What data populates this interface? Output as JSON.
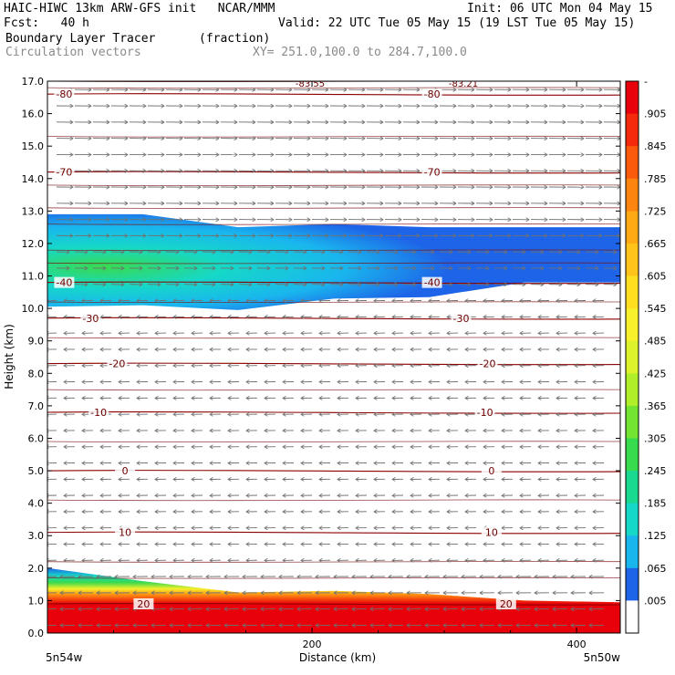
{
  "header": {
    "model_line": "HAIC-HIWC 13km ARW-GFS init   NCAR/MMM",
    "init_line": "Init: 06 UTC Mon 04 May 15",
    "fcst_line": "Fcst:   40 h",
    "valid_line": "Valid: 22 UTC Tue 05 May 15 (19 LST Tue 05 May 15)",
    "field_name": "Boundary Layer Tracer",
    "field_units": "(fraction)",
    "vector_name": "Circulation vectors",
    "xy_range": "XY= 251.0,100.0 to 284.7,100.0"
  },
  "chart_data": {
    "type": "heatmap",
    "xlabel": "Distance (km)",
    "ylabel": "Height (km)",
    "xlim": [
      0,
      433
    ],
    "ylim": [
      0,
      17
    ],
    "x_ticks": [
      {
        "value": 200,
        "label": "200"
      },
      {
        "value": 400,
        "label": "400"
      }
    ],
    "x_end_labels": {
      "left": "5n54w",
      "right": "5n50w"
    },
    "y_ticks": [
      {
        "value": 0,
        "label": "0.0"
      },
      {
        "value": 1,
        "label": "1.0"
      },
      {
        "value": 2,
        "label": "2.0"
      },
      {
        "value": 3,
        "label": "3.0"
      },
      {
        "value": 4,
        "label": "4.0"
      },
      {
        "value": 5,
        "label": "5.0"
      },
      {
        "value": 6,
        "label": "6.0"
      },
      {
        "value": 7,
        "label": "7.0"
      },
      {
        "value": 8,
        "label": "8.0"
      },
      {
        "value": 9,
        "label": "9.0"
      },
      {
        "value": 10,
        "label": "10.0"
      },
      {
        "value": 11,
        "label": "11.0"
      },
      {
        "value": 12,
        "label": "12.0"
      },
      {
        "value": 13,
        "label": "13.0"
      },
      {
        "value": 14,
        "label": "14.0"
      },
      {
        "value": 15,
        "label": "15.0"
      },
      {
        "value": 16,
        "label": "16.0"
      },
      {
        "value": 17,
        "label": "17.0"
      }
    ],
    "colorbar": {
      "labels": [
        "-",
        ".905",
        ".845",
        ".785",
        ".725",
        ".665",
        ".605",
        ".545",
        ".485",
        ".425",
        ".365",
        ".305",
        ".245",
        ".185",
        ".125",
        ".065",
        ".005"
      ],
      "colors": [
        "#e8000b",
        "#f42a0c",
        "#fb5a0c",
        "#fe8410",
        "#ffa914",
        "#ffc319",
        "#ffde1f",
        "#f7f02a",
        "#ddf22a",
        "#b0ee2a",
        "#74e432",
        "#38da4e",
        "#19d88f",
        "#16d8c8",
        "#19b6ee",
        "#1e64e8",
        "#ffffff"
      ]
    },
    "isotherm_contours": [
      {
        "label": "-80",
        "y": 16.6,
        "label_x": [
          12,
          290
        ]
      },
      {
        "label": "-70",
        "y": 14.2,
        "label_x": [
          12,
          290
        ]
      },
      {
        "label": "-40",
        "y": 10.8,
        "label_x": [
          12,
          290
        ]
      },
      {
        "label": "-30",
        "y": 9.7,
        "label_x": [
          32,
          312
        ]
      },
      {
        "label": "-20",
        "y": 8.3,
        "label_x": [
          52,
          332
        ]
      },
      {
        "label": "-10",
        "y": 6.8,
        "label_x": [
          38,
          330
        ]
      },
      {
        "label": "0",
        "y": 5.0,
        "label_x": [
          58,
          335
        ]
      },
      {
        "label": "10",
        "y": 3.1,
        "label_x": [
          58,
          335
        ]
      },
      {
        "label": "20",
        "y": 0.9,
        "label_x": [
          72,
          346
        ]
      }
    ],
    "unlabeled_contour_levels_y": [
      17.0,
      16.8,
      15.3,
      13.8,
      13.1,
      12.6,
      11.8,
      11.4,
      10.2,
      9.1,
      7.5,
      5.9,
      4.1,
      2.2,
      1.7
    ],
    "top_edge_labels": [
      "-83.55",
      "-83.21"
    ],
    "tracer_regions": [
      {
        "name": "upper-outflow-layer",
        "x": [
          0,
          433
        ],
        "y_bottom": [
          10.05,
          10.1,
          9.95,
          10.3,
          10.35,
          10.8,
          10.8
        ],
        "y_top": [
          12.9,
          12.9,
          12.5,
          12.6,
          12.5,
          12.5,
          12.5
        ],
        "max_value": 0.2
      },
      {
        "name": "boundary-layer",
        "x": [
          0,
          433
        ],
        "y_top": [
          2.0,
          1.6,
          1.25,
          1.3,
          1.2,
          1.0,
          0.95
        ],
        "max_value": 0.95
      }
    ],
    "vector_field": {
      "upper_levels_direction": "eastward",
      "lower_levels_direction": "westward",
      "reversal_height_km": 10.5
    }
  }
}
